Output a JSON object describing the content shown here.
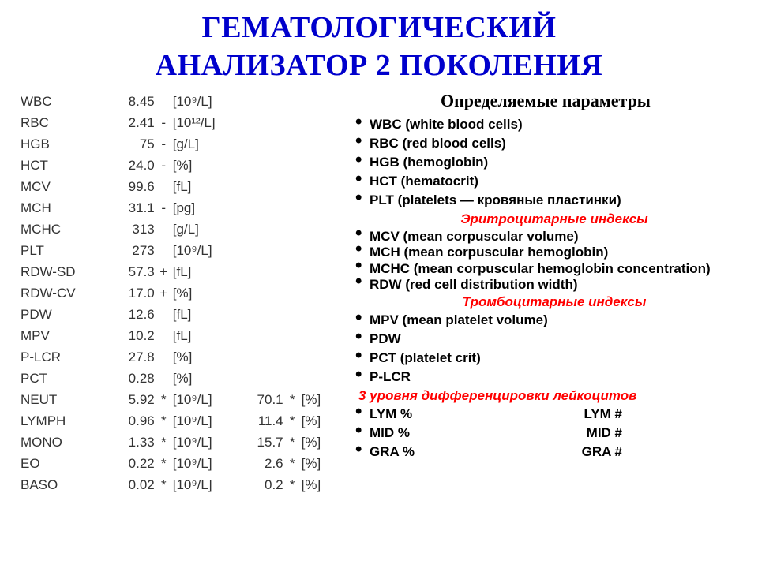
{
  "title_line1": "ГЕМАТОЛОГИЧЕСКИЙ",
  "title_line2": "АНАЛИЗАТОР 2 ПОКОЛЕНИЯ",
  "colors": {
    "title": "#0000cc",
    "section": "#ff0000",
    "text": "#000000",
    "table_text": "#333333",
    "background": "#ffffff"
  },
  "typography": {
    "title_font": "Times New Roman",
    "title_size_pt": 28,
    "body_font": "Arial",
    "body_size_pt": 13,
    "table_size_pt": 13
  },
  "table": {
    "rows": [
      {
        "name": "WBC",
        "val": "8.45",
        "flag": "",
        "unit": "[10⁹/L]",
        "val2": "",
        "flag2": "",
        "unit2": ""
      },
      {
        "name": "RBC",
        "val": "2.41",
        "flag": "-",
        "unit": "[10¹²/L]",
        "val2": "",
        "flag2": "",
        "unit2": ""
      },
      {
        "name": "HGB",
        "val": "75",
        "flag": "-",
        "unit": "[g/L]",
        "val2": "",
        "flag2": "",
        "unit2": ""
      },
      {
        "name": "HCT",
        "val": "24.0",
        "flag": "-",
        "unit": "[%]",
        "val2": "",
        "flag2": "",
        "unit2": ""
      },
      {
        "name": "MCV",
        "val": "99.6",
        "flag": "",
        "unit": "[fL]",
        "val2": "",
        "flag2": "",
        "unit2": ""
      },
      {
        "name": "MCH",
        "val": "31.1",
        "flag": "-",
        "unit": "[pg]",
        "val2": "",
        "flag2": "",
        "unit2": ""
      },
      {
        "name": "MCHC",
        "val": "313",
        "flag": "",
        "unit": "[g/L]",
        "val2": "",
        "flag2": "",
        "unit2": ""
      },
      {
        "name": "PLT",
        "val": "273",
        "flag": "",
        "unit": "[10⁹/L]",
        "val2": "",
        "flag2": "",
        "unit2": ""
      },
      {
        "name": "RDW-SD",
        "val": "57.3",
        "flag": "+",
        "unit": "[fL]",
        "val2": "",
        "flag2": "",
        "unit2": ""
      },
      {
        "name": "RDW-CV",
        "val": "17.0",
        "flag": "+",
        "unit": "[%]",
        "val2": "",
        "flag2": "",
        "unit2": ""
      },
      {
        "name": "PDW",
        "val": "12.6",
        "flag": "",
        "unit": "[fL]",
        "val2": "",
        "flag2": "",
        "unit2": ""
      },
      {
        "name": "MPV",
        "val": "10.2",
        "flag": "",
        "unit": "[fL]",
        "val2": "",
        "flag2": "",
        "unit2": ""
      },
      {
        "name": "P-LCR",
        "val": "27.8",
        "flag": "",
        "unit": "[%]",
        "val2": "",
        "flag2": "",
        "unit2": ""
      },
      {
        "name": "PCT",
        "val": "0.28",
        "flag": "",
        "unit": "[%]",
        "val2": "",
        "flag2": "",
        "unit2": ""
      },
      {
        "name": "NEUT",
        "val": "5.92",
        "flag": "*",
        "unit": "[10⁹/L]",
        "val2": "70.1",
        "flag2": "*",
        "unit2": "[%]"
      },
      {
        "name": "LYMPH",
        "val": "0.96",
        "flag": "*",
        "unit": "[10⁹/L]",
        "val2": "11.4",
        "flag2": "*",
        "unit2": "[%]"
      },
      {
        "name": "MONO",
        "val": "1.33",
        "flag": "*",
        "unit": "[10⁹/L]",
        "val2": "15.7",
        "flag2": "*",
        "unit2": "[%]"
      },
      {
        "name": "EO",
        "val": "0.22",
        "flag": "*",
        "unit": "[10⁹/L]",
        "val2": "2.6",
        "flag2": "*",
        "unit2": "[%]"
      },
      {
        "name": "BASO",
        "val": "0.02",
        "flag": "*",
        "unit": "[10⁹/L]",
        "val2": "0.2",
        "flag2": "*",
        "unit2": "[%]"
      }
    ]
  },
  "right": {
    "subhead": "Определяемые параметры",
    "group1": [
      "WBC (white blood cells)",
      "RBC (red blood cells)",
      "HGB (hemoglobin)",
      "HCT (hematocrit)",
      "PLT (platelets — кровяные пластинки)"
    ],
    "section1": "Эритроцитарные индексы",
    "group2": [
      "MCV (mean corpuscular volume)",
      "MCH (mean corpuscular hemoglobin)",
      "MCHC (mean corpuscular hemoglobin concentration)",
      "RDW (red cell distribution width)"
    ],
    "section2": "Тромбоцитарные индексы",
    "group3": [
      "MPV (mean platelet volume)",
      "PDW",
      "PCT (platelet crit)",
      "P-LCR"
    ],
    "section3": "3 уровня дифференцировки лейкоцитов",
    "group4": [
      {
        "a": "LYM %",
        "b": "LYM #"
      },
      {
        "a": "MID %",
        "b": "MID #"
      },
      {
        "a": "GRA %",
        "b": "GRA #"
      }
    ]
  }
}
